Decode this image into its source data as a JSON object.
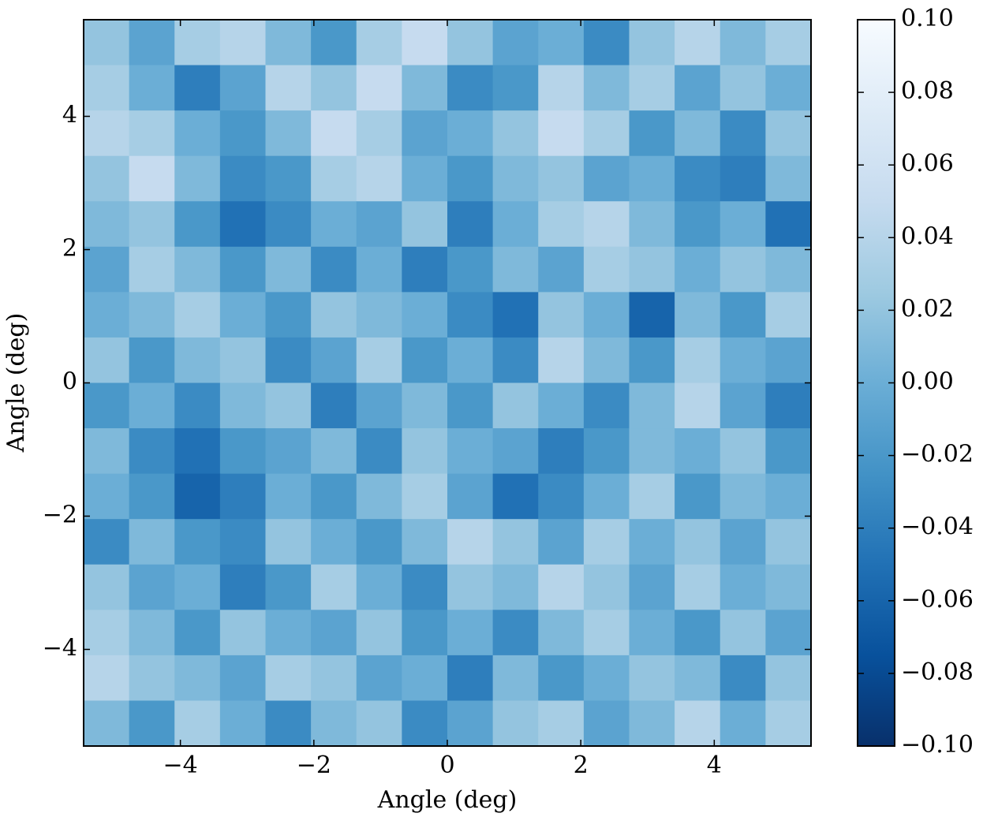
{
  "chart_data": {
    "type": "heatmap",
    "xlabel": "Angle (deg)",
    "ylabel": "Angle (deg)",
    "xlim": [
      -5.45,
      5.45
    ],
    "ylim": [
      -5.45,
      5.45
    ],
    "xticks": [
      {
        "value": -4,
        "label": "−4"
      },
      {
        "value": -2,
        "label": "−2"
      },
      0,
      2,
      4
    ],
    "yticks": [
      {
        "value": -4,
        "label": "−4"
      },
      {
        "value": -2,
        "label": "−2"
      },
      0,
      2,
      4
    ],
    "clim": [
      -0.1,
      0.1
    ],
    "cticks": [
      {
        "value": -0.1,
        "label": "−0.10"
      },
      {
        "value": -0.08,
        "label": "−0.08"
      },
      {
        "value": -0.06,
        "label": "−0.06"
      },
      {
        "value": -0.04,
        "label": "−0.04"
      },
      {
        "value": -0.02,
        "label": "−0.02"
      },
      {
        "value": 0,
        "label": "0.00"
      },
      {
        "value": 0.02,
        "label": "0.02"
      },
      {
        "value": 0.04,
        "label": "0.04"
      },
      {
        "value": 0.06,
        "label": "0.06"
      },
      {
        "value": 0.08,
        "label": "0.08"
      },
      {
        "value": 0.1,
        "label": "0.10"
      }
    ],
    "colormap": [
      "#08306b",
      "#08519c",
      "#2171b5",
      "#4292c6",
      "#6baed6",
      "#9ecae1",
      "#c6dbef",
      "#deebf7",
      "#f7fbff"
    ],
    "z": [
      [
        0.02,
        -0.01,
        0.03,
        0.04,
        0.01,
        -0.02,
        0.03,
        0.05,
        0.02,
        -0.01,
        0.0,
        -0.03,
        0.02,
        0.04,
        0.01,
        0.03
      ],
      [
        0.03,
        0.0,
        -0.04,
        -0.01,
        0.04,
        0.02,
        0.05,
        0.01,
        -0.03,
        -0.02,
        0.04,
        0.01,
        0.03,
        -0.01,
        0.02,
        0.0
      ],
      [
        0.04,
        0.03,
        0.0,
        -0.02,
        0.01,
        0.05,
        0.03,
        -0.01,
        0.0,
        0.02,
        0.05,
        0.03,
        -0.02,
        0.01,
        -0.03,
        0.02
      ],
      [
        0.02,
        0.05,
        0.01,
        -0.03,
        -0.02,
        0.03,
        0.04,
        0.0,
        -0.02,
        0.01,
        0.02,
        -0.01,
        0.0,
        -0.03,
        -0.04,
        0.01
      ],
      [
        0.01,
        0.02,
        -0.02,
        -0.05,
        -0.03,
        0.0,
        -0.01,
        0.02,
        -0.04,
        0.0,
        0.03,
        0.04,
        0.01,
        -0.02,
        0.0,
        -0.05
      ],
      [
        -0.01,
        0.03,
        0.01,
        -0.02,
        0.01,
        -0.03,
        0.0,
        -0.04,
        -0.02,
        0.01,
        -0.01,
        0.03,
        0.02,
        0.0,
        0.02,
        0.01
      ],
      [
        0.0,
        0.01,
        0.03,
        0.0,
        -0.02,
        0.02,
        0.01,
        0.0,
        -0.03,
        -0.05,
        0.02,
        0.0,
        -0.06,
        0.01,
        -0.02,
        0.03
      ],
      [
        0.02,
        -0.02,
        0.01,
        0.02,
        -0.03,
        -0.01,
        0.03,
        -0.02,
        0.0,
        -0.03,
        0.04,
        0.01,
        -0.02,
        0.03,
        0.0,
        -0.01
      ],
      [
        -0.02,
        0.0,
        -0.03,
        0.01,
        0.02,
        -0.04,
        -0.01,
        0.01,
        -0.02,
        0.02,
        0.0,
        -0.03,
        0.01,
        0.04,
        -0.01,
        -0.04
      ],
      [
        0.01,
        -0.03,
        -0.05,
        -0.02,
        -0.01,
        0.01,
        -0.03,
        0.02,
        0.0,
        -0.01,
        -0.04,
        -0.02,
        0.01,
        0.0,
        0.02,
        -0.02
      ],
      [
        0.0,
        -0.02,
        -0.06,
        -0.04,
        0.0,
        -0.02,
        0.01,
        0.03,
        -0.01,
        -0.05,
        -0.03,
        0.0,
        0.03,
        -0.02,
        0.01,
        0.0
      ],
      [
        -0.03,
        0.01,
        -0.02,
        -0.03,
        0.02,
        0.0,
        -0.02,
        0.01,
        0.04,
        0.02,
        -0.01,
        0.03,
        0.0,
        0.02,
        -0.01,
        0.02
      ],
      [
        0.02,
        -0.01,
        0.0,
        -0.04,
        -0.02,
        0.03,
        0.0,
        -0.03,
        0.02,
        0.01,
        0.04,
        0.02,
        -0.01,
        0.03,
        0.0,
        0.01
      ],
      [
        0.03,
        0.01,
        -0.02,
        0.02,
        0.0,
        -0.01,
        0.02,
        -0.02,
        0.0,
        -0.03,
        0.01,
        0.03,
        0.0,
        -0.02,
        0.02,
        -0.01
      ],
      [
        0.04,
        0.02,
        0.01,
        -0.01,
        0.03,
        0.02,
        -0.01,
        0.0,
        -0.04,
        0.01,
        -0.02,
        0.0,
        0.02,
        0.01,
        -0.03,
        0.02
      ],
      [
        0.01,
        -0.02,
        0.03,
        0.0,
        -0.03,
        0.01,
        0.02,
        -0.03,
        -0.01,
        0.02,
        0.03,
        -0.01,
        0.01,
        0.04,
        0.0,
        0.03
      ]
    ]
  }
}
